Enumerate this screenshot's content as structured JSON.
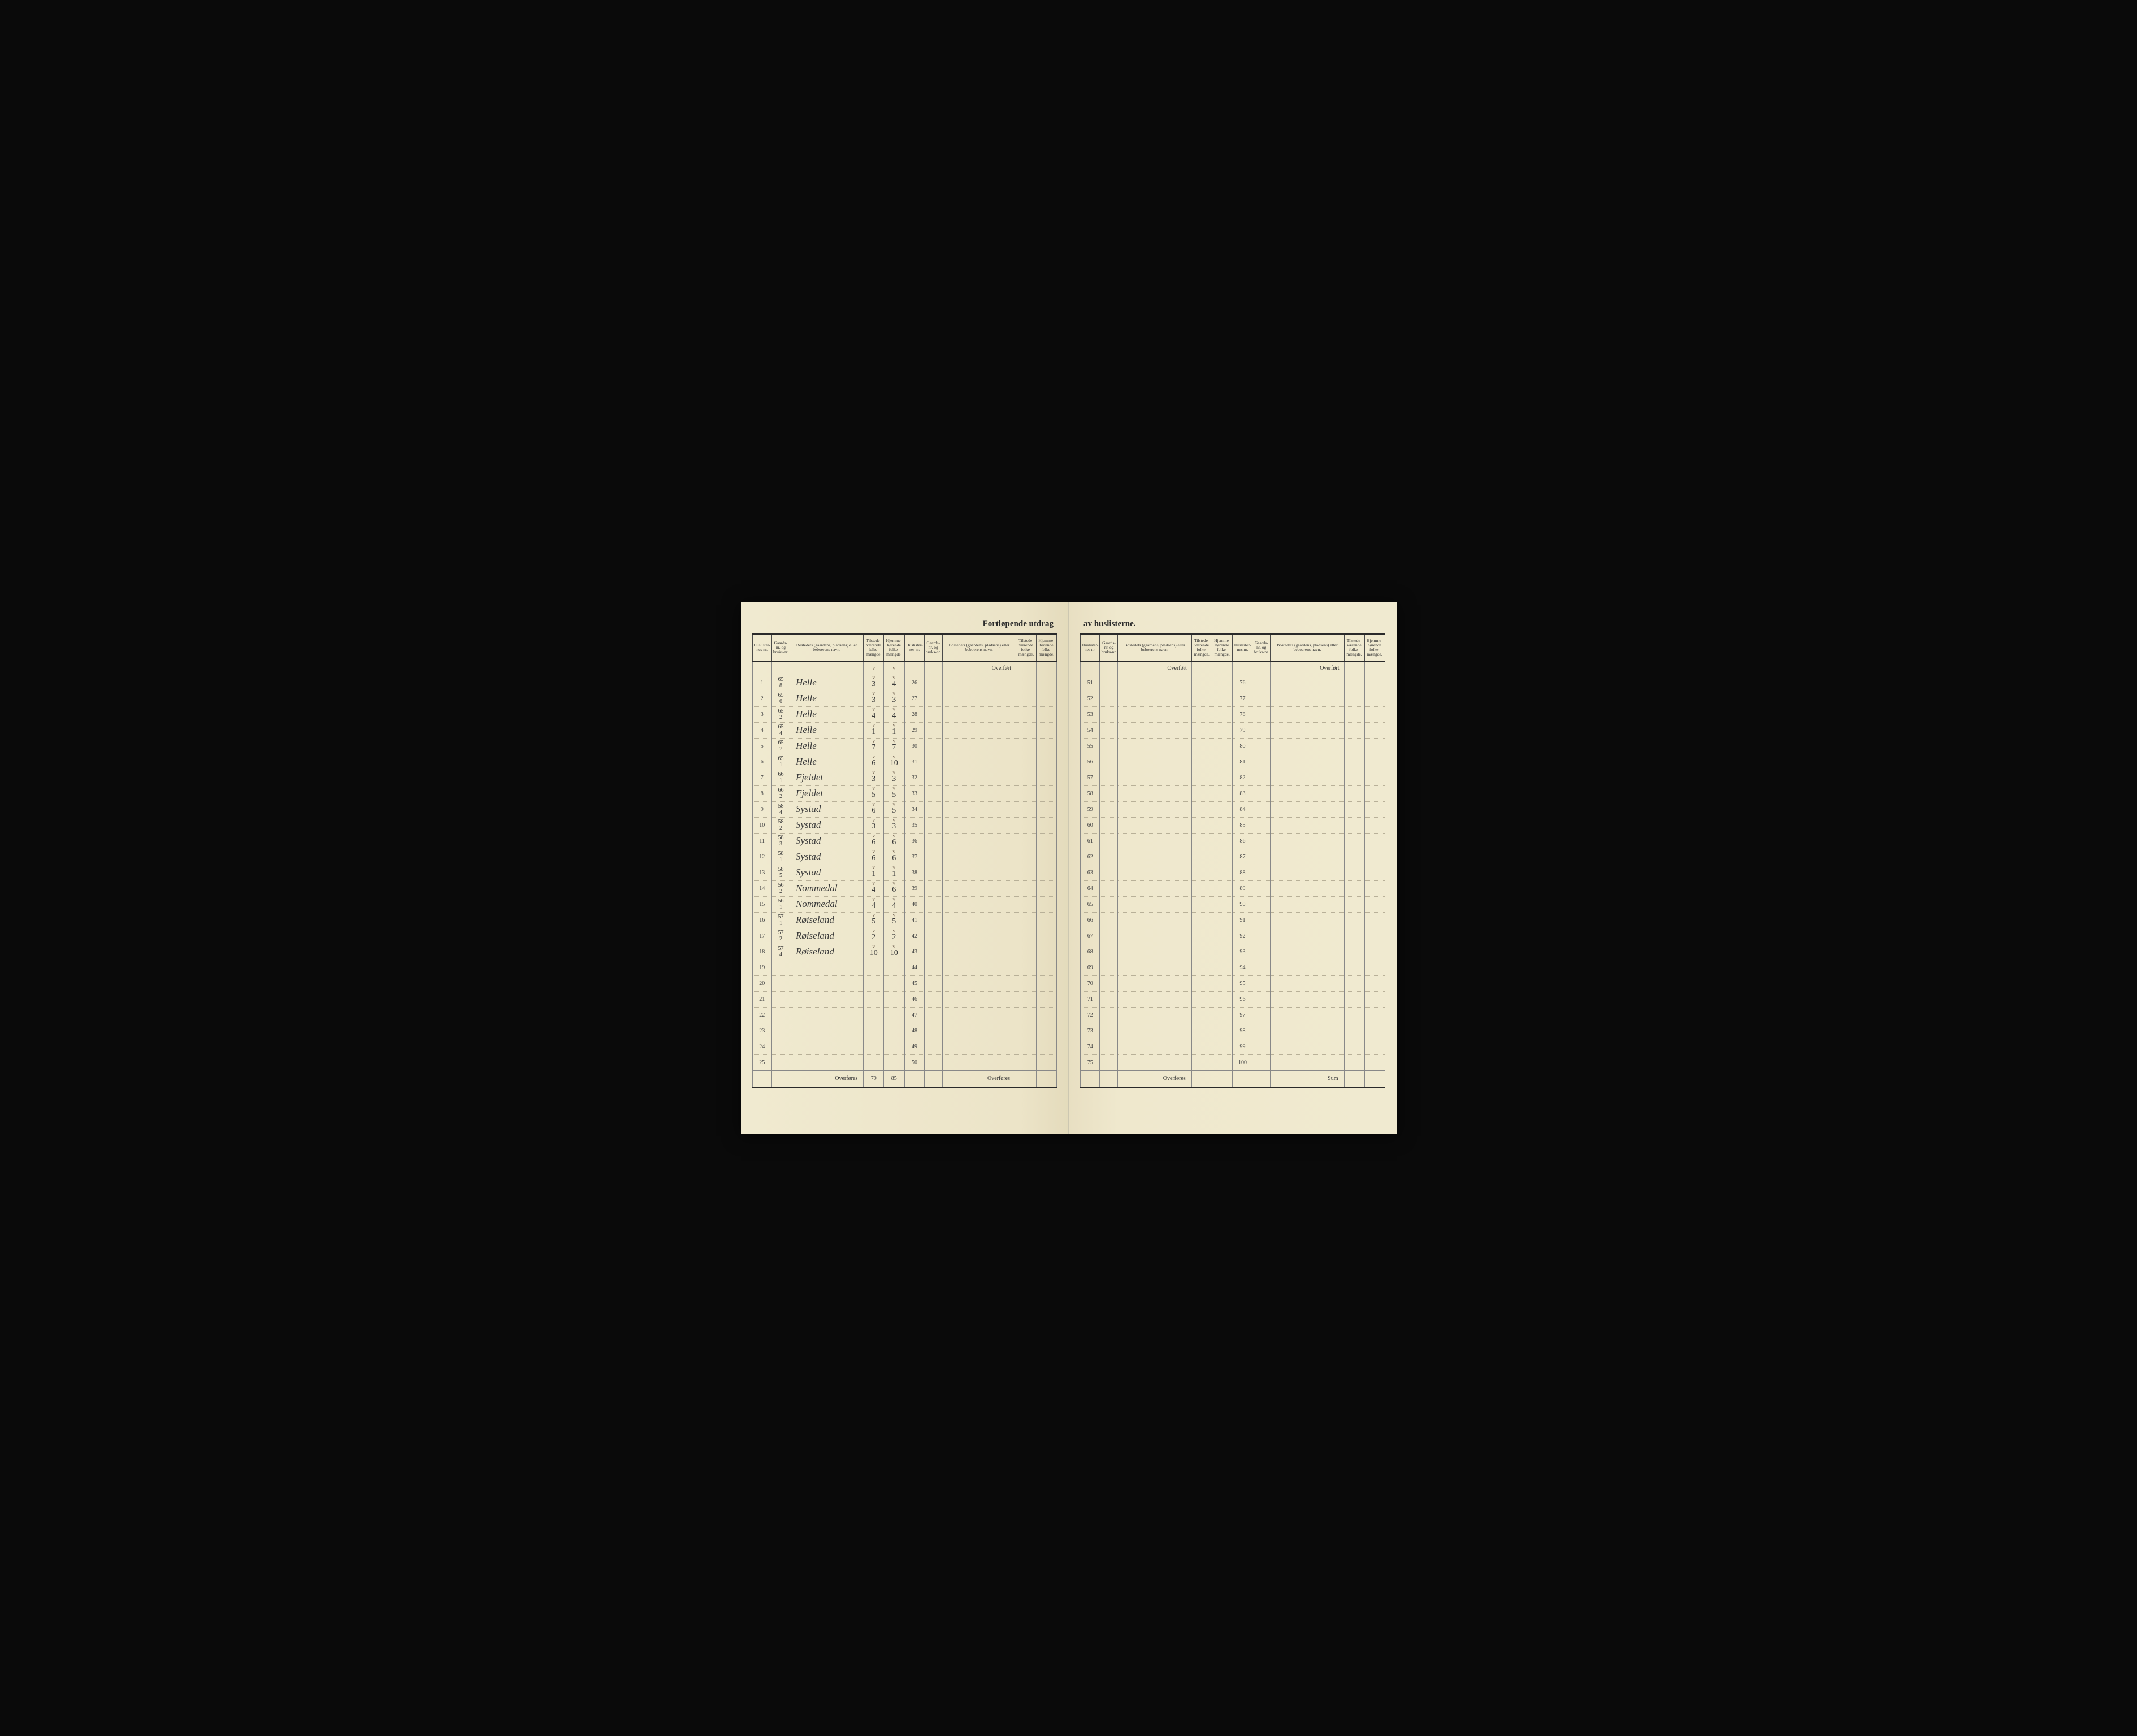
{
  "document": {
    "title_left": "Fortløpende utdrag",
    "title_right": "av huslisterne.",
    "background_color": "#f0ead0",
    "ink_color": "#3a3a3a",
    "rule_color": "#888888"
  },
  "headers": {
    "huslister": "Huslister-nes nr.",
    "gaards": "Gaards-nr. og bruks-nr.",
    "bosted": "Bostedets (gaardens, pladsens) eller beboerens navn.",
    "tilstede": "Tilstede-værende folke-mængde.",
    "hjemme": "Hjemme-hørende folke-mængde.",
    "overfort": "Overført",
    "overfores": "Overføres",
    "sum": "Sum"
  },
  "rows_left_a": [
    {
      "n": "1",
      "g": "65\n8",
      "name": "Helle",
      "t": "3",
      "h": "4"
    },
    {
      "n": "2",
      "g": "65\n6",
      "name": "Helle",
      "t": "3",
      "h": "3"
    },
    {
      "n": "3",
      "g": "65\n2",
      "name": "Helle",
      "t": "4",
      "h": "4"
    },
    {
      "n": "4",
      "g": "65\n4",
      "name": "Helle",
      "t": "1",
      "h": "1"
    },
    {
      "n": "5",
      "g": "65\n7",
      "name": "Helle",
      "t": "7",
      "h": "7"
    },
    {
      "n": "6",
      "g": "65\n1",
      "name": "Helle",
      "t": "6",
      "h": "10"
    },
    {
      "n": "7",
      "g": "66\n1",
      "name": "Fjeldet",
      "t": "3",
      "h": "3"
    },
    {
      "n": "8",
      "g": "66\n2",
      "name": "Fjeldet",
      "t": "5",
      "h": "5"
    },
    {
      "n": "9",
      "g": "58\n4",
      "name": "Systad",
      "t": "6",
      "h": "5"
    },
    {
      "n": "10",
      "g": "58\n2",
      "name": "Systad",
      "t": "3",
      "h": "3"
    },
    {
      "n": "11",
      "g": "58\n3",
      "name": "Systad",
      "t": "6",
      "h": "6"
    },
    {
      "n": "12",
      "g": "58\n1",
      "name": "Systad",
      "t": "6",
      "h": "6"
    },
    {
      "n": "13",
      "g": "58\n5",
      "name": "Systad",
      "t": "1",
      "h": "1"
    },
    {
      "n": "14",
      "g": "56\n2",
      "name": "Nommedal",
      "t": "4",
      "h": "6"
    },
    {
      "n": "15",
      "g": "56\n1",
      "name": "Nommedal",
      "t": "4",
      "h": "4"
    },
    {
      "n": "16",
      "g": "57\n1",
      "name": "Røiseland",
      "t": "5",
      "h": "5"
    },
    {
      "n": "17",
      "g": "57\n2",
      "name": "Røiseland",
      "t": "2",
      "h": "2"
    },
    {
      "n": "18",
      "g": "57\n4",
      "name": "Røiseland",
      "t": "10",
      "h": "10"
    },
    {
      "n": "19",
      "g": "",
      "name": "",
      "t": "",
      "h": ""
    },
    {
      "n": "20",
      "g": "",
      "name": "",
      "t": "",
      "h": ""
    },
    {
      "n": "21",
      "g": "",
      "name": "",
      "t": "",
      "h": ""
    },
    {
      "n": "22",
      "g": "",
      "name": "",
      "t": "",
      "h": ""
    },
    {
      "n": "23",
      "g": "",
      "name": "",
      "t": "",
      "h": ""
    },
    {
      "n": "24",
      "g": "",
      "name": "",
      "t": "",
      "h": ""
    },
    {
      "n": "25",
      "g": "",
      "name": "",
      "t": "",
      "h": ""
    }
  ],
  "rows_left_b": [
    {
      "n": "26"
    },
    {
      "n": "27"
    },
    {
      "n": "28"
    },
    {
      "n": "29"
    },
    {
      "n": "30"
    },
    {
      "n": "31"
    },
    {
      "n": "32"
    },
    {
      "n": "33"
    },
    {
      "n": "34"
    },
    {
      "n": "35"
    },
    {
      "n": "36"
    },
    {
      "n": "37"
    },
    {
      "n": "38"
    },
    {
      "n": "39"
    },
    {
      "n": "40"
    },
    {
      "n": "41"
    },
    {
      "n": "42"
    },
    {
      "n": "43"
    },
    {
      "n": "44"
    },
    {
      "n": "45"
    },
    {
      "n": "46"
    },
    {
      "n": "47"
    },
    {
      "n": "48"
    },
    {
      "n": "49"
    },
    {
      "n": "50"
    }
  ],
  "rows_right_a": [
    {
      "n": "51"
    },
    {
      "n": "52"
    },
    {
      "n": "53"
    },
    {
      "n": "54"
    },
    {
      "n": "55"
    },
    {
      "n": "56"
    },
    {
      "n": "57"
    },
    {
      "n": "58"
    },
    {
      "n": "59"
    },
    {
      "n": "60"
    },
    {
      "n": "61"
    },
    {
      "n": "62"
    },
    {
      "n": "63"
    },
    {
      "n": "64"
    },
    {
      "n": "65"
    },
    {
      "n": "66"
    },
    {
      "n": "67"
    },
    {
      "n": "68"
    },
    {
      "n": "69"
    },
    {
      "n": "70"
    },
    {
      "n": "71"
    },
    {
      "n": "72"
    },
    {
      "n": "73"
    },
    {
      "n": "74"
    },
    {
      "n": "75"
    }
  ],
  "rows_right_b": [
    {
      "n": "76"
    },
    {
      "n": "77"
    },
    {
      "n": "78"
    },
    {
      "n": "79"
    },
    {
      "n": "80"
    },
    {
      "n": "81"
    },
    {
      "n": "82"
    },
    {
      "n": "83"
    },
    {
      "n": "84"
    },
    {
      "n": "85"
    },
    {
      "n": "86"
    },
    {
      "n": "87"
    },
    {
      "n": "88"
    },
    {
      "n": "89"
    },
    {
      "n": "90"
    },
    {
      "n": "91"
    },
    {
      "n": "92"
    },
    {
      "n": "93"
    },
    {
      "n": "94"
    },
    {
      "n": "95"
    },
    {
      "n": "96"
    },
    {
      "n": "97"
    },
    {
      "n": "98"
    },
    {
      "n": "99"
    },
    {
      "n": "100"
    }
  ],
  "totals": {
    "tilstede": "79",
    "hjemme": "85"
  }
}
